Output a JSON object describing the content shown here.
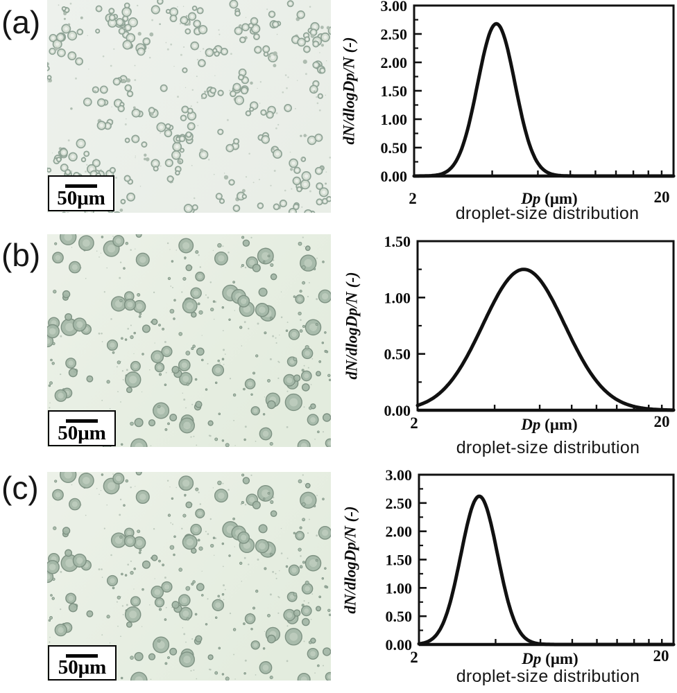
{
  "figure": {
    "panels": [
      {
        "id": "a",
        "label": "(a)",
        "micrograph": {
          "scale_label": "50μm",
          "style": "ring",
          "background": "#edf1ec",
          "background2": "#e9eee7",
          "ring_fill": "#d6dfd4",
          "droplet_edge": "#8fa396",
          "hole_color": "#ebefe9",
          "dot_fill": "#aebcb0",
          "speckle_color": "#c2cdc2",
          "seed": 20,
          "droplet_count": 340,
          "speckle_count": 130,
          "radius_min": 2.6,
          "radius_max": 6.4
        }
      },
      {
        "id": "b",
        "label": "(b)",
        "micrograph": {
          "scale_label": "50μm",
          "style": "filled",
          "background": "#ecf1e8",
          "background2": "#e3ecde",
          "droplet_fill": "#a3b6a6",
          "droplet_edge": "#7d9182",
          "inner_highlight": "#ccd8ca",
          "speckle_color": "#b6c3b6",
          "seed": 77,
          "droplet_count": 215,
          "speckle_count": 150,
          "radius_min": 1.3,
          "radius_max": 12.1
        }
      },
      {
        "id": "c",
        "label": "(c)",
        "micrograph": {
          "scale_label": "50μm",
          "style": "filled",
          "background": "#ecf1e8",
          "background2": "#e3ecde",
          "droplet_fill": "#a3b6a6",
          "droplet_edge": "#7d9182",
          "inner_highlight": "#ccd8ca",
          "speckle_color": "#b6c3b6",
          "seed": 77,
          "droplet_count": 215,
          "speckle_count": 150,
          "radius_min": 1.3,
          "radius_max": 12.1
        }
      }
    ]
  },
  "chart_data": [
    {
      "panel": "a",
      "type": "line",
      "title": "",
      "ylabel": "dN/dlogDp/N (-)",
      "xlabel_italic": "Dp",
      "xlabel_unit": " (μm)",
      "caption": "droplet-size distribution",
      "x_scale": "log",
      "xlim": [
        2,
        20
      ],
      "x_tick_labels": [
        "2",
        "20"
      ],
      "x_minor_ticks": [
        4,
        6,
        8,
        10,
        12,
        14,
        16,
        18
      ],
      "ylim": [
        0,
        3
      ],
      "y_major_ticks": [
        0,
        0.5,
        1,
        1.5,
        2,
        2.5,
        3
      ],
      "y_tick_labels": [
        "0.00",
        "0.50",
        "1.00",
        "1.50",
        "2.00",
        "2.50",
        "3.00"
      ],
      "y_minor_ticks": [
        0.25,
        0.75,
        1.25,
        1.75,
        2.25,
        2.75
      ],
      "grid": false,
      "legend": false,
      "line_color": "#111111",
      "line_width": 5,
      "curve": {
        "shape": "lognormal",
        "peak_x_um": 4.15,
        "peak_y": 2.68,
        "sigma_log10": 0.072
      },
      "points": {
        "x": [
          2,
          2.5,
          3,
          3.5,
          4,
          4.5,
          5,
          6,
          7,
          8,
          10,
          12,
          14,
          16,
          18,
          20
        ],
        "y": [
          0.0,
          0.02,
          0.4,
          1.58,
          2.61,
          2.38,
          1.43,
          0.23,
          0.02,
          0.0,
          0.0,
          0.0,
          0.0,
          0.0,
          0.0,
          0.0
        ]
      }
    },
    {
      "panel": "b",
      "type": "line",
      "title": "",
      "ylabel": "dN/dlogDp/N (-)",
      "xlabel_italic": "Dp",
      "xlabel_unit": " (μm)",
      "caption": "droplet-size distribution",
      "x_scale": "log",
      "xlim": [
        2,
        20
      ],
      "x_tick_labels": [
        "2",
        "20"
      ],
      "x_minor_ticks": [
        4,
        6,
        8,
        10,
        12,
        14,
        16,
        18
      ],
      "ylim": [
        0,
        1.5
      ],
      "y_major_ticks": [
        0,
        0.5,
        1,
        1.5
      ],
      "y_tick_labels": [
        "0.00",
        "0.50",
        "1.00",
        "1.50"
      ],
      "y_minor_ticks": [
        0.25,
        0.75,
        1.25
      ],
      "grid": false,
      "legend": false,
      "line_color": "#111111",
      "line_width": 5,
      "curve": {
        "shape": "lognormal",
        "peak_x_um": 5.2,
        "peak_y": 1.25,
        "sigma_log10": 0.16
      },
      "points": {
        "x": [
          2,
          2.5,
          3,
          3.5,
          4,
          4.5,
          5,
          6,
          7,
          8,
          10,
          12,
          14,
          16,
          18,
          20
        ],
        "y": [
          0.04,
          0.17,
          0.41,
          0.7,
          0.97,
          1.16,
          1.24,
          1.16,
          0.9,
          0.63,
          0.26,
          0.1,
          0.03,
          0.01,
          0.0,
          0.0
        ]
      }
    },
    {
      "panel": "c",
      "type": "line",
      "title": "",
      "ylabel": "dN/dlogDp/N (-)",
      "xlabel_italic": "Dp",
      "xlabel_unit": " (μm)",
      "caption": "droplet-size distribution",
      "x_scale": "log",
      "xlim": [
        2,
        20
      ],
      "x_tick_labels": [
        "2",
        "20"
      ],
      "x_minor_ticks": [
        4,
        6,
        8,
        10,
        12,
        14,
        16,
        18
      ],
      "ylim": [
        0,
        3
      ],
      "y_major_ticks": [
        0,
        0.5,
        1,
        1.5,
        2,
        2.5,
        3
      ],
      "y_tick_labels": [
        "0.00",
        "0.50",
        "1.00",
        "1.50",
        "2.00",
        "2.50",
        "3.00"
      ],
      "y_minor_ticks": [
        0.25,
        0.75,
        1.25,
        1.75,
        2.25,
        2.75
      ],
      "grid": false,
      "legend": false,
      "line_color": "#111111",
      "line_width": 5,
      "curve": {
        "shape": "lognormal",
        "peak_x_um": 3.45,
        "peak_y": 2.62,
        "sigma_log10": 0.072
      },
      "points": {
        "x": [
          2,
          2.5,
          3,
          3.5,
          4,
          4.5,
          5,
          6,
          7,
          8,
          10,
          12,
          14,
          16,
          18,
          20
        ],
        "y": [
          0.01,
          0.4,
          1.84,
          2.61,
          1.76,
          0.72,
          0.21,
          0.01,
          0.0,
          0.0,
          0.0,
          0.0,
          0.0,
          0.0,
          0.0,
          0.0
        ]
      }
    }
  ]
}
